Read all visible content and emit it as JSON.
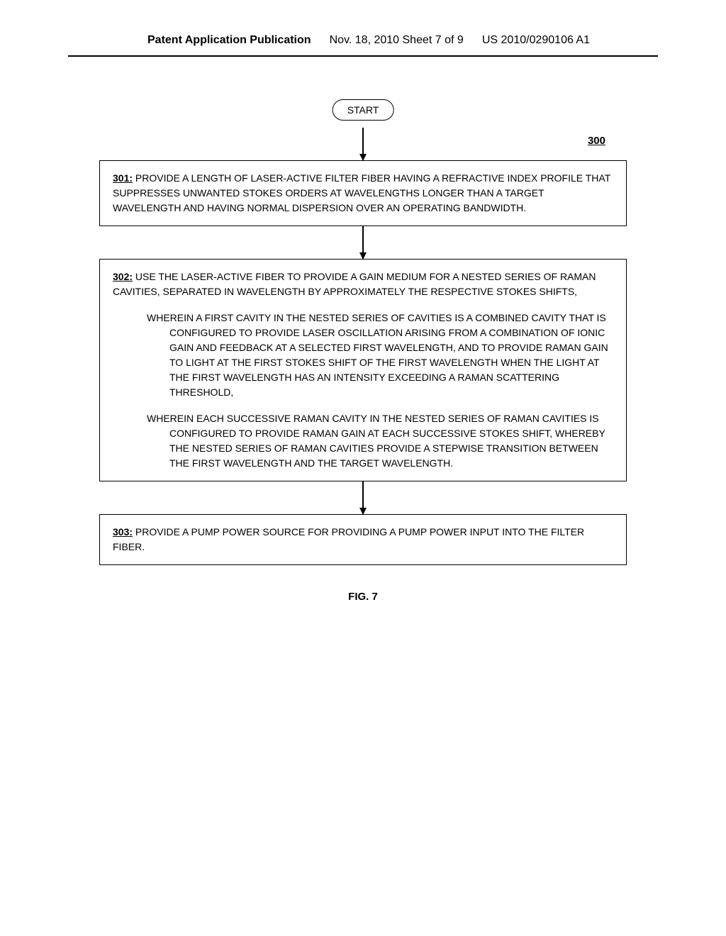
{
  "header": {
    "left": "Patent Application Publication",
    "center": "Nov. 18, 2010  Sheet 7 of 9",
    "right": "US 2010/0290106 A1"
  },
  "flowchart": {
    "number": "300",
    "start_label": "START",
    "figure_label": "FIG. 7",
    "box_border_color": "#000000",
    "background_color": "#ffffff",
    "font_size_body": 14,
    "steps": [
      {
        "id": "301",
        "text": "PROVIDE A LENGTH OF LASER-ACTIVE FILTER FIBER HAVING A REFRACTIVE INDEX PROFILE THAT SUPPRESSES UNWANTED STOKES ORDERS AT WAVELENGTHS LONGER THAN A TARGET WAVELENGTH AND HAVING NORMAL DISPERSION OVER AN OPERATING BANDWIDTH."
      },
      {
        "id": "302",
        "text": "USE THE LASER-ACTIVE FIBER TO PROVIDE A GAIN MEDIUM FOR A NESTED SERIES OF RAMAN CAVITIES, SEPARATED IN WAVELENGTH BY APPROXIMATELY THE RESPECTIVE STOKES SHIFTS,",
        "sub1": "WHEREIN A FIRST CAVITY IN THE NESTED SERIES OF CAVITIES IS A COMBINED CAVITY THAT IS CONFIGURED TO PROVIDE LASER OSCILLATION ARISING FROM A COMBINATION OF IONIC GAIN AND FEEDBACK AT A SELECTED FIRST WAVELENGTH, AND TO PROVIDE RAMAN GAIN TO LIGHT AT THE FIRST STOKES SHIFT OF THE FIRST WAVELENGTH WHEN THE LIGHT AT THE FIRST WAVELENGTH HAS AN INTENSITY EXCEEDING A RAMAN SCATTERING THRESHOLD,",
        "sub2": "WHEREIN EACH SUCCESSIVE RAMAN CAVITY IN THE NESTED SERIES OF RAMAN CAVITIES IS CONFIGURED TO PROVIDE RAMAN GAIN AT EACH SUCCESSIVE STOKES SHIFT, WHEREBY THE NESTED SERIES OF RAMAN CAVITIES PROVIDE A STEPWISE TRANSITION BETWEEN THE FIRST WAVELENGTH AND THE TARGET WAVELENGTH."
      },
      {
        "id": "303",
        "text": "PROVIDE A PUMP POWER SOURCE FOR PROVIDING A PUMP POWER INPUT INTO THE FILTER FIBER."
      }
    ]
  }
}
